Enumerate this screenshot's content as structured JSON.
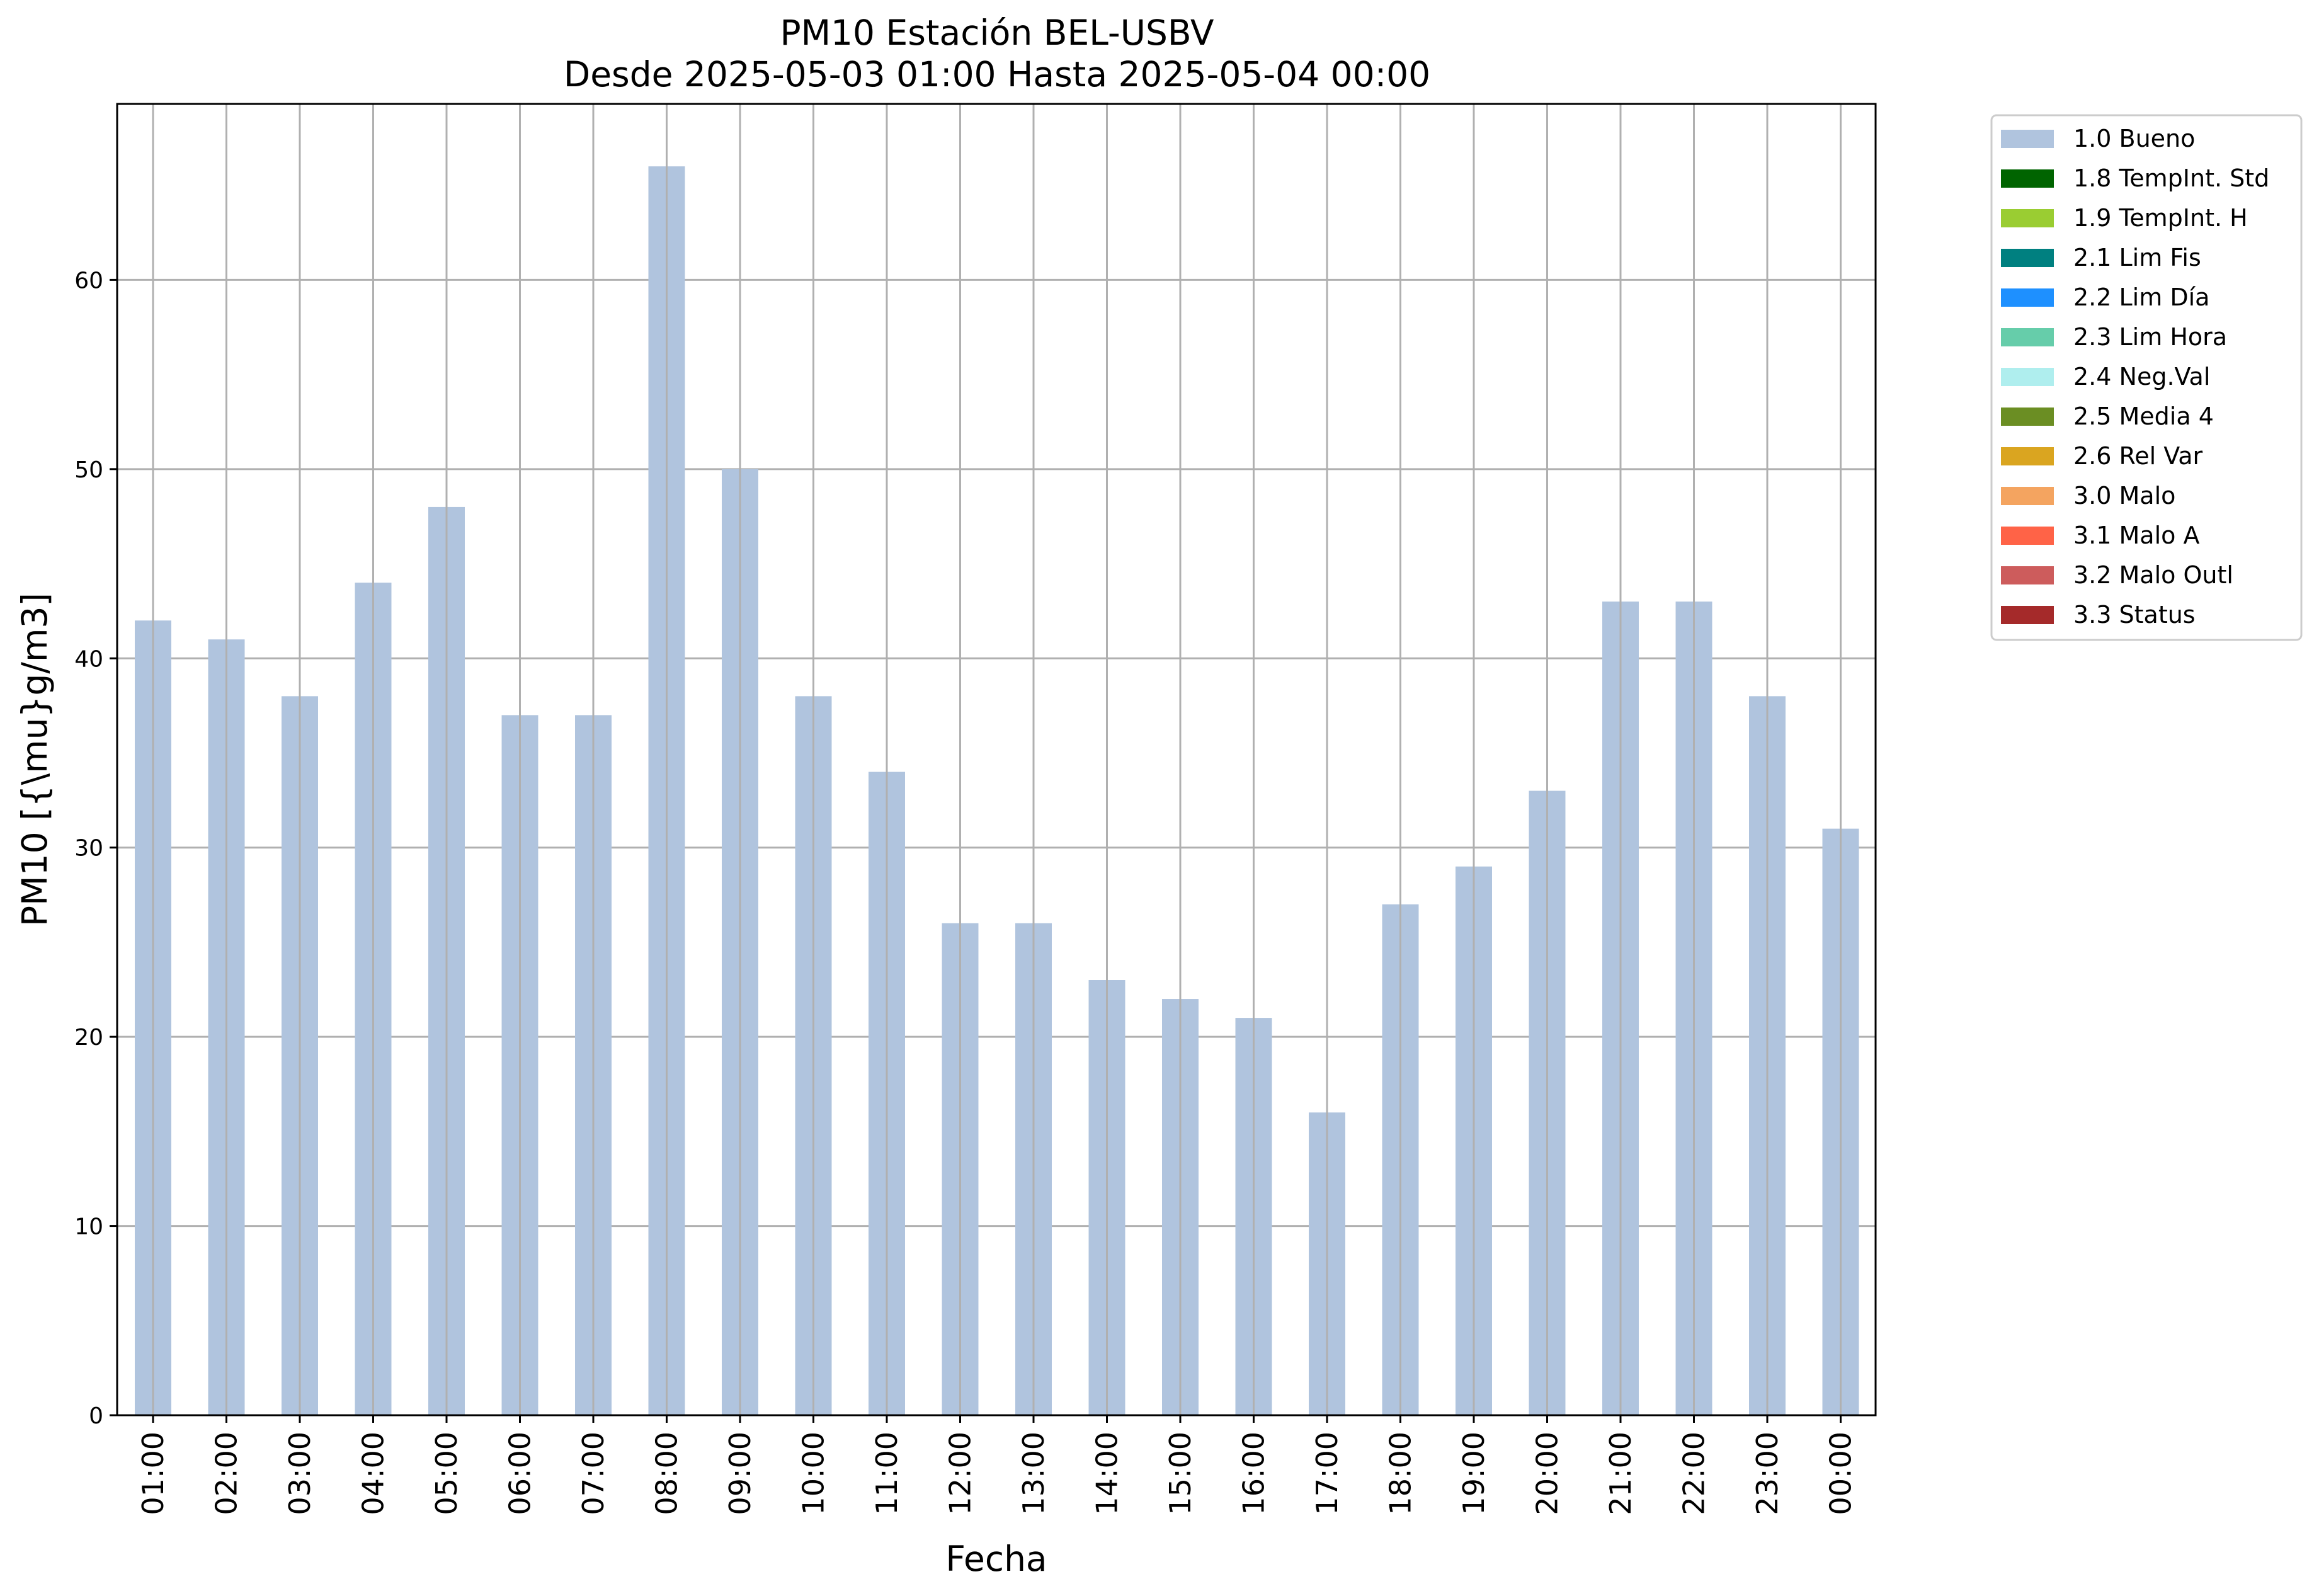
{
  "chart_data": {
    "type": "bar",
    "title": "PM10 Estación BEL-USBV",
    "subtitle": "Desde 2025-05-03 01:00 Hasta 2025-05-04 00:00",
    "xlabel": "Fecha",
    "ylabel": "PM10 [{\\mu}g/m3]",
    "ylim": [
      0,
      69.3
    ],
    "yticks": [
      0,
      10,
      20,
      30,
      40,
      50,
      60
    ],
    "grid": true,
    "legend_position": "outside-right",
    "categories": [
      "01:00",
      "02:00",
      "03:00",
      "04:00",
      "05:00",
      "06:00",
      "07:00",
      "08:00",
      "09:00",
      "10:00",
      "11:00",
      "12:00",
      "13:00",
      "14:00",
      "15:00",
      "16:00",
      "17:00",
      "18:00",
      "19:00",
      "20:00",
      "21:00",
      "22:00",
      "23:00",
      "00:00"
    ],
    "series": [
      {
        "name": "1.0 Bueno",
        "color": "#b0c4de",
        "values": [
          42,
          41,
          38,
          44,
          48,
          37,
          37,
          66,
          50,
          38,
          34,
          26,
          26,
          23,
          22,
          21,
          16,
          27,
          29,
          33,
          43,
          43,
          38,
          31
        ]
      }
    ],
    "legend": [
      {
        "label": "1.0 Bueno",
        "color": "#b0c4de"
      },
      {
        "label": "1.8 TempInt. Std",
        "color": "#006400"
      },
      {
        "label": "1.9 TempInt. H",
        "color": "#9acd32"
      },
      {
        "label": "2.1 Lim Fis",
        "color": "#008080"
      },
      {
        "label": "2.2 Lim Día",
        "color": "#1e90ff"
      },
      {
        "label": "2.3 Lim Hora",
        "color": "#66cdaa"
      },
      {
        "label": "2.4 Neg.Val",
        "color": "#afeeee"
      },
      {
        "label": "2.5 Media 4",
        "color": "#6b8e23"
      },
      {
        "label": "2.6 Rel Var",
        "color": "#daa520"
      },
      {
        "label": "3.0 Malo",
        "color": "#f4a460"
      },
      {
        "label": "3.1 Malo A",
        "color": "#ff6347"
      },
      {
        "label": "3.2 Malo Outl",
        "color": "#cd5c5c"
      },
      {
        "label": "3.3 Status",
        "color": "#a52a2a"
      }
    ]
  }
}
